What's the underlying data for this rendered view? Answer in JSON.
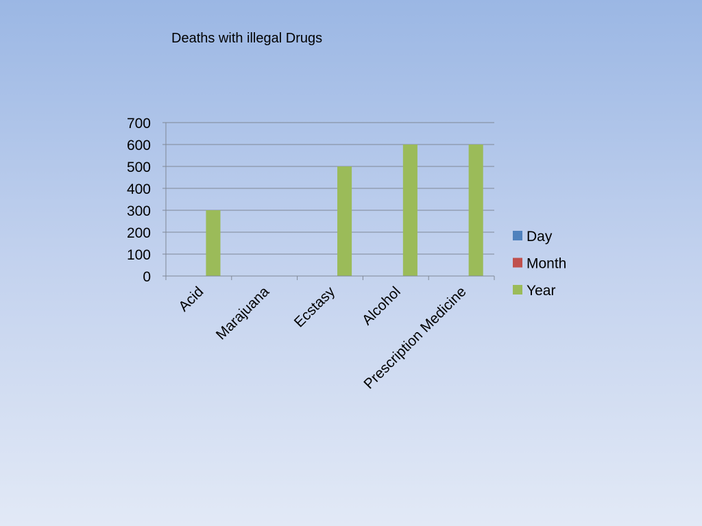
{
  "chart_data": {
    "type": "bar",
    "title": "Deaths with illegal Drugs",
    "categories": [
      "Acid",
      "Marajuana",
      "Ecstasy",
      "Alcohol",
      "Prescription Medicine"
    ],
    "series": [
      {
        "name": "Day",
        "values": [
          0,
          0,
          0,
          0,
          0
        ],
        "color": "#4f81bd"
      },
      {
        "name": "Month",
        "values": [
          0,
          0,
          0,
          0,
          0
        ],
        "color": "#c0504d"
      },
      {
        "name": "Year",
        "values": [
          300,
          0,
          500,
          600,
          600
        ],
        "color": "#9bbb59"
      }
    ],
    "ylim": [
      0,
      700
    ],
    "yticks": [
      "0",
      "100",
      "200",
      "300",
      "400",
      "500",
      "600",
      "700"
    ],
    "grid": true,
    "legend": "right"
  }
}
